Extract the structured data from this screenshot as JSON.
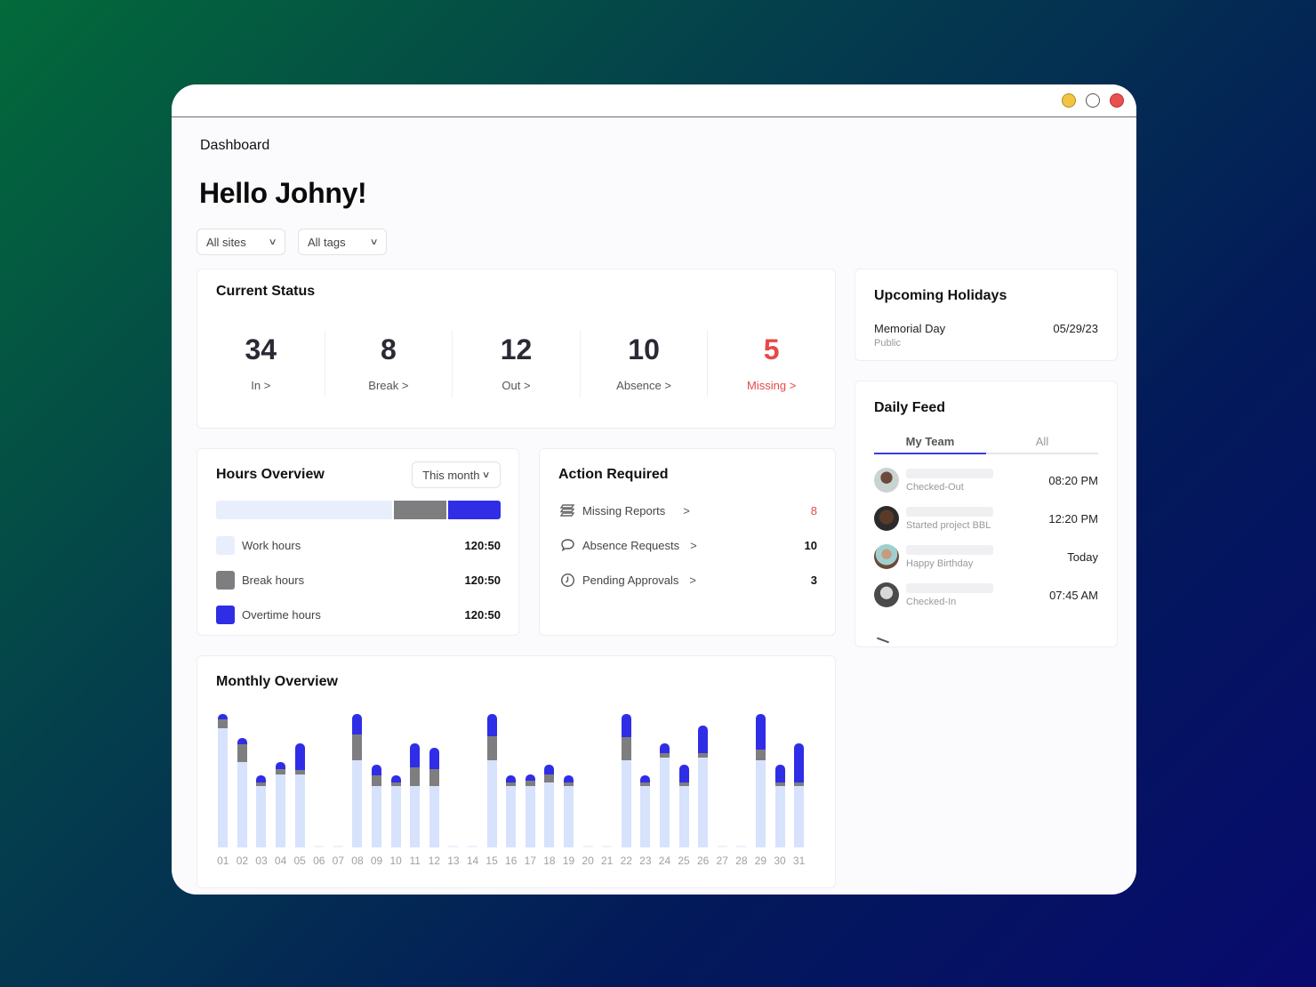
{
  "window": {
    "controls": [
      {
        "name": "minimize",
        "color": "#f2c444"
      },
      {
        "name": "maximize",
        "color": "#ffffff"
      },
      {
        "name": "close",
        "color": "#ea5050"
      }
    ]
  },
  "header": {
    "breadcrumb": "Dashboard",
    "greeting": "Hello Johny!"
  },
  "filters": {
    "sites": "All sites",
    "tags": "All tags"
  },
  "current_status": {
    "title": "Current Status",
    "items": [
      {
        "value": "34",
        "label": "In >"
      },
      {
        "value": "8",
        "label": "Break >"
      },
      {
        "value": "12",
        "label": "Out >"
      },
      {
        "value": "10",
        "label": "Absence >"
      },
      {
        "value": "5",
        "label": "Missing >"
      }
    ]
  },
  "hours_overview": {
    "title": "Hours Overview",
    "range": "This month",
    "bar": {
      "work_pct": 62.5,
      "break_pct": 18.75,
      "overtime_pct": 18.75
    },
    "items": [
      {
        "label": "Work hours",
        "value": "120:50",
        "color": "#e8eefc"
      },
      {
        "label": "Break hours",
        "value": "120:50",
        "color": "#7e7e80"
      },
      {
        "label": "Overtime hours",
        "value": "120:50",
        "color": "#2f2ee6"
      }
    ]
  },
  "action_required": {
    "title": "Action Required",
    "items": [
      {
        "icon": "stack-icon",
        "label": "Missing Reports",
        "chevron": ">",
        "count": "8"
      },
      {
        "icon": "chat-bubble-icon",
        "label": "Absence Requests",
        "chevron": ">",
        "count": "10"
      },
      {
        "icon": "clock-icon",
        "label": "Pending Approvals",
        "chevron": ">",
        "count": "3"
      }
    ]
  },
  "upcoming_holidays": {
    "title": "Upcoming Holidays",
    "items": [
      {
        "name": "Memorial Day",
        "type": "Public",
        "date": "05/29/23"
      }
    ]
  },
  "daily_feed": {
    "title": "Daily Feed",
    "tabs": [
      {
        "label": "My Team",
        "active": true
      },
      {
        "label": "All",
        "active": false
      }
    ],
    "items": [
      {
        "description": "Checked-Out",
        "time": "08:20 PM"
      },
      {
        "description": "Started project BBL",
        "time": "12:20 PM"
      },
      {
        "description": "Happy Birthday",
        "time": "Today"
      },
      {
        "description": "Checked-In",
        "time": "07:45 AM"
      }
    ]
  },
  "monthly_overview": {
    "title": "Monthly Overview"
  },
  "chart_data": {
    "type": "bar",
    "stacked": true,
    "title": "Monthly Overview",
    "xlabel": "",
    "ylabel": "",
    "categories": [
      "01",
      "02",
      "03",
      "04",
      "05",
      "06",
      "07",
      "08",
      "09",
      "10",
      "11",
      "12",
      "13",
      "14",
      "15",
      "16",
      "17",
      "18",
      "19",
      "20",
      "21",
      "22",
      "23",
      "24",
      "25",
      "26",
      "27",
      "28",
      "29",
      "30",
      "31"
    ],
    "series": [
      {
        "name": "Work hours",
        "color": "#d7e2fc",
        "values": [
          135,
          97,
          69,
          83,
          83,
          0,
          0,
          99,
          69,
          69,
          69,
          69,
          0,
          0,
          99,
          69,
          69,
          73,
          69,
          0,
          0,
          99,
          69,
          102,
          69,
          102,
          0,
          0,
          99,
          69,
          69
        ]
      },
      {
        "name": "Break hours",
        "color": "#7e7e80",
        "values": [
          10,
          20,
          5,
          6,
          5,
          0,
          0,
          29,
          13,
          5,
          22,
          20,
          0,
          0,
          27,
          5,
          7,
          10,
          5,
          0,
          0,
          26,
          5,
          5,
          5,
          5,
          0,
          0,
          12,
          5,
          5
        ]
      },
      {
        "name": "Overtime hours",
        "color": "#2f2ee6",
        "values": [
          6,
          7,
          8,
          8,
          30,
          0,
          0,
          23,
          12,
          8,
          27,
          24,
          0,
          0,
          25,
          8,
          7,
          11,
          8,
          0,
          0,
          26,
          8,
          11,
          20,
          31,
          0,
          0,
          40,
          20,
          44
        ]
      }
    ],
    "ylim": [
      0,
      155
    ],
    "grid": false,
    "legend": "none"
  }
}
